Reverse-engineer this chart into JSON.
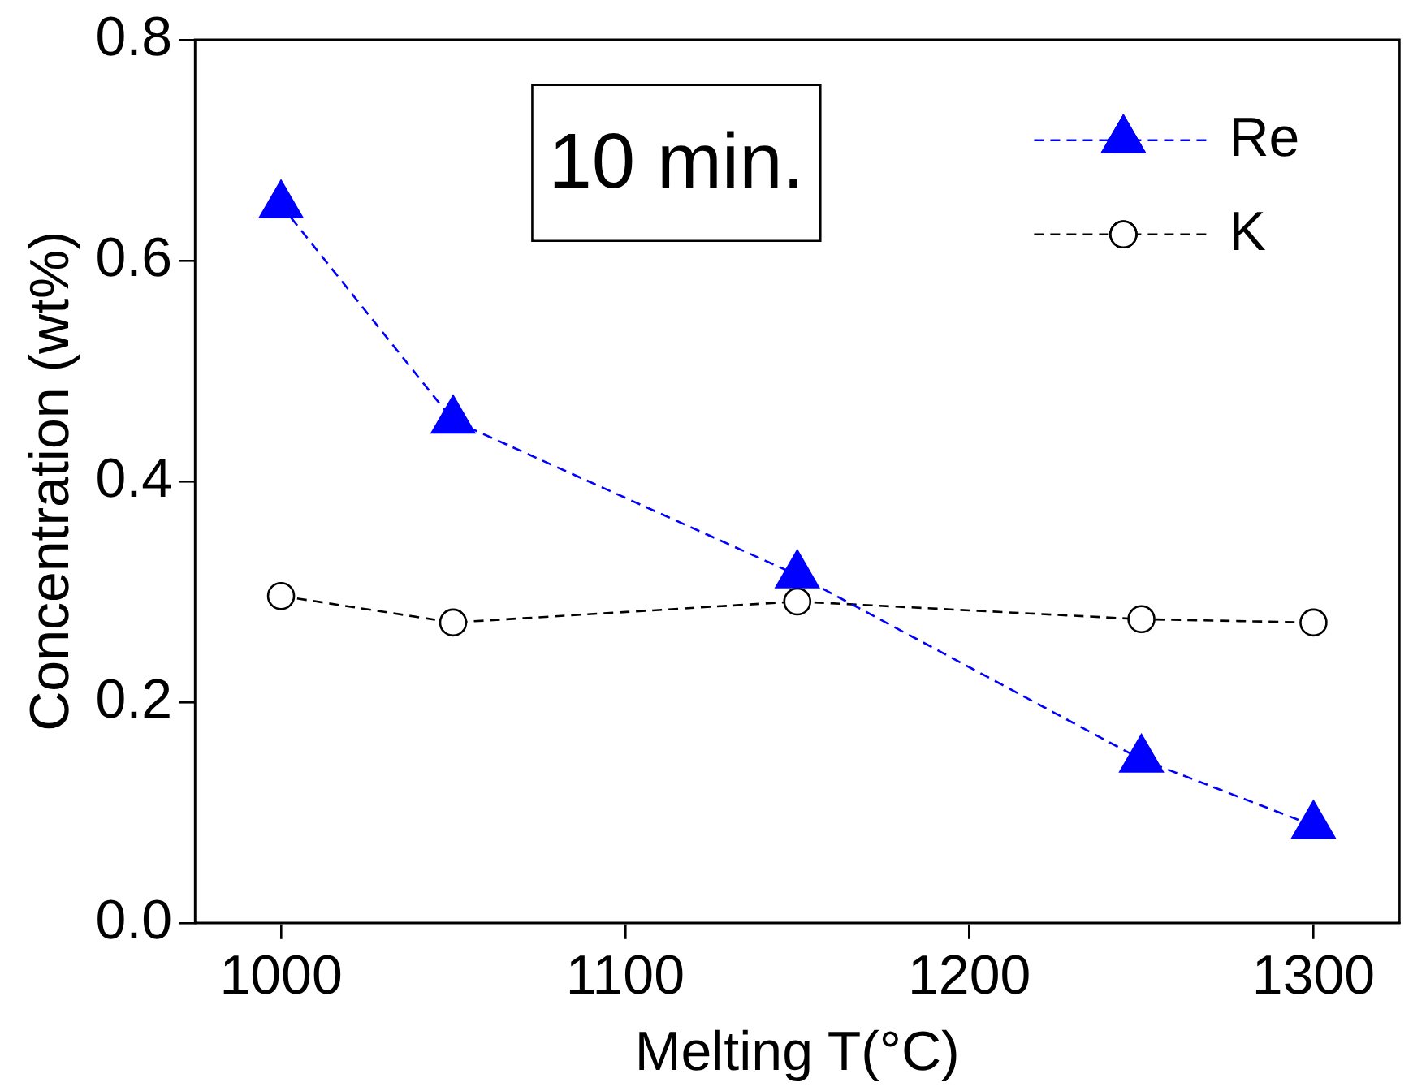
{
  "chart_data": {
    "type": "line",
    "xlabel": "Melting T(°C)",
    "ylabel": "Concentration (wt%)",
    "annotations": [
      "10 min."
    ],
    "x": [
      1000,
      1050,
      1150,
      1250,
      1300
    ],
    "series": [
      {
        "name": "Re",
        "color": "#0000ff",
        "marker": "triangle",
        "values": [
          0.65,
          0.455,
          0.315,
          0.148,
          0.088
        ]
      },
      {
        "name": "K",
        "color": "#000000",
        "marker": "circle",
        "values": [
          0.296,
          0.272,
          0.291,
          0.275,
          0.272
        ]
      }
    ],
    "xlim": [
      975,
      1325
    ],
    "xticks": [
      1000,
      1100,
      1200,
      1300
    ],
    "ylim": [
      0,
      0.8
    ],
    "yticks": [
      {
        "value": 0,
        "label": "0.0"
      },
      {
        "value": 0.2,
        "label": "0.2"
      },
      {
        "value": 0.4,
        "label": "0.4"
      },
      {
        "value": 0.6,
        "label": "0.6"
      },
      {
        "value": 0.8,
        "label": "0.8"
      }
    ],
    "grid": false,
    "legend": "top right",
    "line_style": "dashed"
  }
}
